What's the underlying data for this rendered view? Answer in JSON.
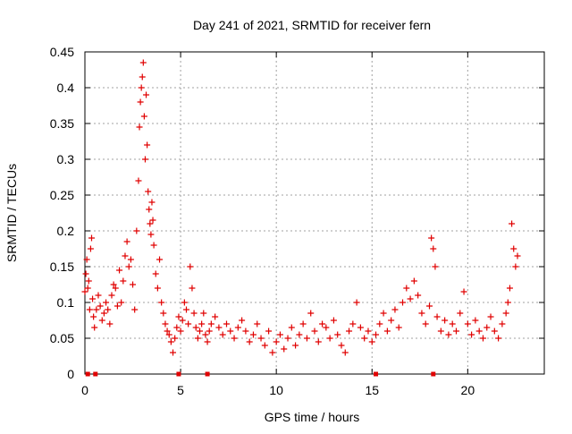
{
  "chart_data": {
    "type": "scatter",
    "title": "Day 241 of 2021, SRMTID for receiver fern",
    "xlabel": "GPS time / hours",
    "ylabel": "SRMTID / TECUs",
    "xlim": [
      0,
      24
    ],
    "ylim": [
      0,
      0.45
    ],
    "xticks": [
      0,
      5,
      10,
      15,
      20
    ],
    "yticks": [
      0,
      0.05,
      0.1,
      0.15,
      0.2,
      0.25,
      0.3,
      0.35,
      0.4,
      0.45
    ],
    "xtick_labels": [
      "0",
      "5",
      "10",
      "15",
      "20"
    ],
    "ytick_labels": [
      "0",
      "0.05",
      "0.1",
      "0.15",
      "0.2",
      "0.25",
      "0.3",
      "0.35",
      "0.4",
      "0.45"
    ],
    "grid": true,
    "marker": "+",
    "marker_color": "#e00000",
    "baseline_markers_x": [
      0.15,
      0.55,
      4.9,
      6.4,
      15.2,
      18.2
    ],
    "series": [
      {
        "points": [
          [
            0.0,
            0.115
          ],
          [
            0.05,
            0.14
          ],
          [
            0.1,
            0.16
          ],
          [
            0.15,
            0.12
          ],
          [
            0.2,
            0.13
          ],
          [
            0.25,
            0.09
          ],
          [
            0.3,
            0.175
          ],
          [
            0.35,
            0.19
          ],
          [
            0.4,
            0.105
          ],
          [
            0.45,
            0.08
          ],
          [
            0.5,
            0.065
          ],
          [
            0.6,
            0.09
          ],
          [
            0.7,
            0.11
          ],
          [
            0.8,
            0.095
          ],
          [
            0.9,
            0.075
          ],
          [
            1.0,
            0.085
          ],
          [
            1.1,
            0.1
          ],
          [
            1.2,
            0.09
          ],
          [
            1.3,
            0.07
          ],
          [
            1.4,
            0.11
          ],
          [
            1.5,
            0.125
          ],
          [
            1.6,
            0.12
          ],
          [
            1.7,
            0.095
          ],
          [
            1.8,
            0.145
          ],
          [
            1.9,
            0.1
          ],
          [
            2.0,
            0.13
          ],
          [
            2.1,
            0.165
          ],
          [
            2.2,
            0.185
          ],
          [
            2.3,
            0.15
          ],
          [
            2.4,
            0.16
          ],
          [
            2.5,
            0.125
          ],
          [
            2.6,
            0.09
          ],
          [
            2.7,
            0.2
          ],
          [
            2.8,
            0.27
          ],
          [
            2.85,
            0.345
          ],
          [
            2.9,
            0.38
          ],
          [
            2.95,
            0.4
          ],
          [
            3.0,
            0.415
          ],
          [
            3.05,
            0.435
          ],
          [
            3.1,
            0.36
          ],
          [
            3.15,
            0.3
          ],
          [
            3.2,
            0.39
          ],
          [
            3.25,
            0.32
          ],
          [
            3.3,
            0.255
          ],
          [
            3.35,
            0.23
          ],
          [
            3.4,
            0.21
          ],
          [
            3.45,
            0.195
          ],
          [
            3.5,
            0.24
          ],
          [
            3.55,
            0.215
          ],
          [
            3.6,
            0.18
          ],
          [
            3.7,
            0.14
          ],
          [
            3.8,
            0.12
          ],
          [
            3.9,
            0.16
          ],
          [
            4.0,
            0.1
          ],
          [
            4.1,
            0.085
          ],
          [
            4.2,
            0.07
          ],
          [
            4.3,
            0.06
          ],
          [
            4.4,
            0.055
          ],
          [
            4.5,
            0.045
          ],
          [
            4.6,
            0.03
          ],
          [
            4.7,
            0.05
          ],
          [
            4.8,
            0.065
          ],
          [
            4.9,
            0.08
          ],
          [
            5.0,
            0.06
          ],
          [
            5.1,
            0.075
          ],
          [
            5.2,
            0.1
          ],
          [
            5.3,
            0.09
          ],
          [
            5.4,
            0.07
          ],
          [
            5.5,
            0.15
          ],
          [
            5.6,
            0.12
          ],
          [
            5.7,
            0.085
          ],
          [
            5.8,
            0.065
          ],
          [
            5.9,
            0.05
          ],
          [
            6.0,
            0.06
          ],
          [
            6.1,
            0.07
          ],
          [
            6.2,
            0.085
          ],
          [
            6.3,
            0.055
          ],
          [
            6.4,
            0.045
          ],
          [
            6.5,
            0.06
          ],
          [
            6.6,
            0.07
          ],
          [
            6.8,
            0.08
          ],
          [
            7.0,
            0.065
          ],
          [
            7.2,
            0.055
          ],
          [
            7.4,
            0.07
          ],
          [
            7.6,
            0.06
          ],
          [
            7.8,
            0.05
          ],
          [
            8.0,
            0.065
          ],
          [
            8.2,
            0.075
          ],
          [
            8.4,
            0.06
          ],
          [
            8.6,
            0.045
          ],
          [
            8.8,
            0.055
          ],
          [
            9.0,
            0.07
          ],
          [
            9.2,
            0.05
          ],
          [
            9.4,
            0.04
          ],
          [
            9.6,
            0.06
          ],
          [
            9.8,
            0.03
          ],
          [
            10.0,
            0.045
          ],
          [
            10.2,
            0.055
          ],
          [
            10.4,
            0.035
          ],
          [
            10.6,
            0.05
          ],
          [
            10.8,
            0.065
          ],
          [
            11.0,
            0.04
          ],
          [
            11.2,
            0.055
          ],
          [
            11.4,
            0.07
          ],
          [
            11.6,
            0.05
          ],
          [
            11.8,
            0.085
          ],
          [
            12.0,
            0.06
          ],
          [
            12.2,
            0.045
          ],
          [
            12.4,
            0.07
          ],
          [
            12.6,
            0.065
          ],
          [
            12.8,
            0.05
          ],
          [
            13.0,
            0.075
          ],
          [
            13.2,
            0.055
          ],
          [
            13.4,
            0.04
          ],
          [
            13.6,
            0.03
          ],
          [
            13.8,
            0.06
          ],
          [
            14.0,
            0.07
          ],
          [
            14.2,
            0.1
          ],
          [
            14.4,
            0.065
          ],
          [
            14.6,
            0.05
          ],
          [
            14.8,
            0.06
          ],
          [
            15.0,
            0.045
          ],
          [
            15.2,
            0.055
          ],
          [
            15.4,
            0.07
          ],
          [
            15.6,
            0.085
          ],
          [
            15.8,
            0.06
          ],
          [
            16.0,
            0.075
          ],
          [
            16.2,
            0.09
          ],
          [
            16.4,
            0.065
          ],
          [
            16.6,
            0.1
          ],
          [
            16.8,
            0.12
          ],
          [
            17.0,
            0.105
          ],
          [
            17.2,
            0.13
          ],
          [
            17.4,
            0.11
          ],
          [
            17.6,
            0.085
          ],
          [
            17.8,
            0.07
          ],
          [
            18.0,
            0.095
          ],
          [
            18.1,
            0.19
          ],
          [
            18.2,
            0.175
          ],
          [
            18.3,
            0.15
          ],
          [
            18.4,
            0.08
          ],
          [
            18.6,
            0.06
          ],
          [
            18.8,
            0.075
          ],
          [
            19.0,
            0.055
          ],
          [
            19.2,
            0.07
          ],
          [
            19.4,
            0.06
          ],
          [
            19.6,
            0.085
          ],
          [
            19.8,
            0.115
          ],
          [
            20.0,
            0.07
          ],
          [
            20.2,
            0.055
          ],
          [
            20.4,
            0.075
          ],
          [
            20.6,
            0.06
          ],
          [
            20.8,
            0.05
          ],
          [
            21.0,
            0.065
          ],
          [
            21.2,
            0.08
          ],
          [
            21.4,
            0.06
          ],
          [
            21.6,
            0.05
          ],
          [
            21.8,
            0.07
          ],
          [
            22.0,
            0.085
          ],
          [
            22.1,
            0.1
          ],
          [
            22.2,
            0.12
          ],
          [
            22.3,
            0.21
          ],
          [
            22.4,
            0.175
          ],
          [
            22.5,
            0.15
          ],
          [
            22.6,
            0.165
          ]
        ]
      }
    ]
  }
}
